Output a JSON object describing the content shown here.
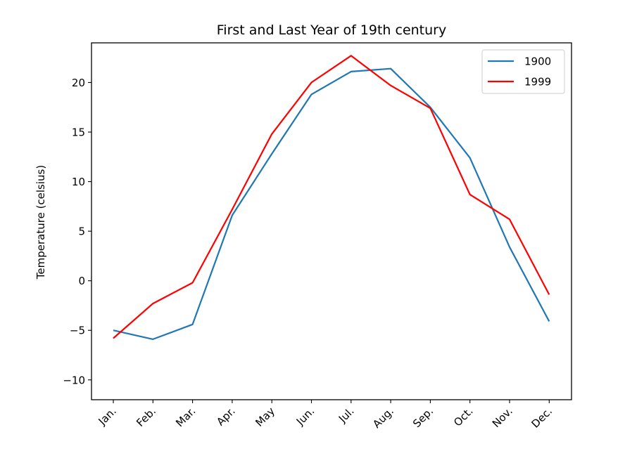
{
  "chart_data": {
    "type": "line",
    "title": "First and Last Year of 19th century",
    "xlabel": "",
    "ylabel": "Temperature (celsius)",
    "categories": [
      "Jan.",
      "Feb.",
      "Mar.",
      "Apr.",
      "May",
      "Jun.",
      "Jul.",
      "Aug.",
      "Sep.",
      "Oct.",
      "Nov.",
      "Dec."
    ],
    "ylim": [
      -12,
      24
    ],
    "yticks": [
      -10,
      -5,
      0,
      5,
      10,
      15,
      20
    ],
    "grid": false,
    "legend_position": "top-right",
    "series": [
      {
        "name": "1900",
        "color": "#1f77b4",
        "values": [
          -5.0,
          -5.9,
          -4.4,
          6.6,
          12.8,
          18.8,
          21.1,
          21.4,
          17.5,
          12.4,
          3.4,
          -4.1
        ]
      },
      {
        "name": "1999",
        "color": "#ff0000",
        "values": [
          -5.8,
          -2.3,
          -0.2,
          7.2,
          14.8,
          20.0,
          22.7,
          19.7,
          17.4,
          8.7,
          6.2,
          -1.4
        ]
      }
    ]
  }
}
